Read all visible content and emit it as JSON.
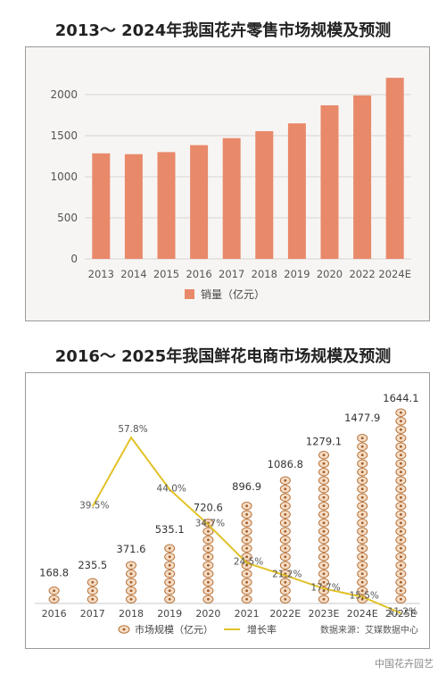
{
  "page": {
    "watermark": "中国花卉园艺"
  },
  "chart_data": [
    {
      "type": "bar",
      "title": "2013～ 2024年我国花卉零售市场规模及预测",
      "categories": [
        "2013",
        "2014",
        "2015",
        "2016",
        "2017",
        "2018",
        "2019",
        "2020",
        "2022",
        "2024E"
      ],
      "series": [
        {
          "name": "销量（亿元）",
          "values": [
            1285,
            1275,
            1300,
            1385,
            1470,
            1555,
            1650,
            1870,
            1990,
            2205
          ]
        }
      ],
      "ylim": [
        0,
        2000
      ],
      "yticks": [
        0,
        500,
        1000,
        1500,
        2000
      ],
      "grid": true,
      "legend": "bottom",
      "colors": {
        "bar": "#e8896a",
        "grid": "#d9d4cf",
        "background": "#f7f5f3"
      }
    },
    {
      "type": "bar+line",
      "title": "2016～ 2025年我国鲜花电商市场规模及预测",
      "categories": [
        "2016",
        "2017",
        "2018",
        "2019",
        "2020",
        "2021",
        "2022E",
        "2023E",
        "2024E",
        "2025E"
      ],
      "series": [
        {
          "name": "市场规模（亿元）",
          "type": "bar",
          "values": [
            168.8,
            235.5,
            371.6,
            535.1,
            720.6,
            896.9,
            1086.8,
            1279.1,
            1477.9,
            1644.1
          ],
          "labels": [
            "168.8",
            "235.5",
            "371.6",
            "535.1",
            "720.6",
            "896.9",
            "1086.8",
            "1279.1",
            "1477.9",
            "1644.1"
          ]
        },
        {
          "name": "增长率",
          "type": "line",
          "values": [
            null,
            39.5,
            57.8,
            44.0,
            34.7,
            24.5,
            21.2,
            17.7,
            15.5,
            11.2
          ],
          "labels": [
            "",
            "39.5%",
            "57.8%",
            "44.0%",
            "34.7%",
            "24.5%",
            "21.2%",
            "17.7%",
            "15.5%",
            "11.2%"
          ]
        }
      ],
      "legend": "bottom",
      "source": "数据来源：艾媒数据中心",
      "colors": {
        "bar_fill": "#f5dcc4",
        "bar_outline": "#b5723a",
        "bar_dot": "#a05a26",
        "line": "#e2c227"
      }
    }
  ]
}
